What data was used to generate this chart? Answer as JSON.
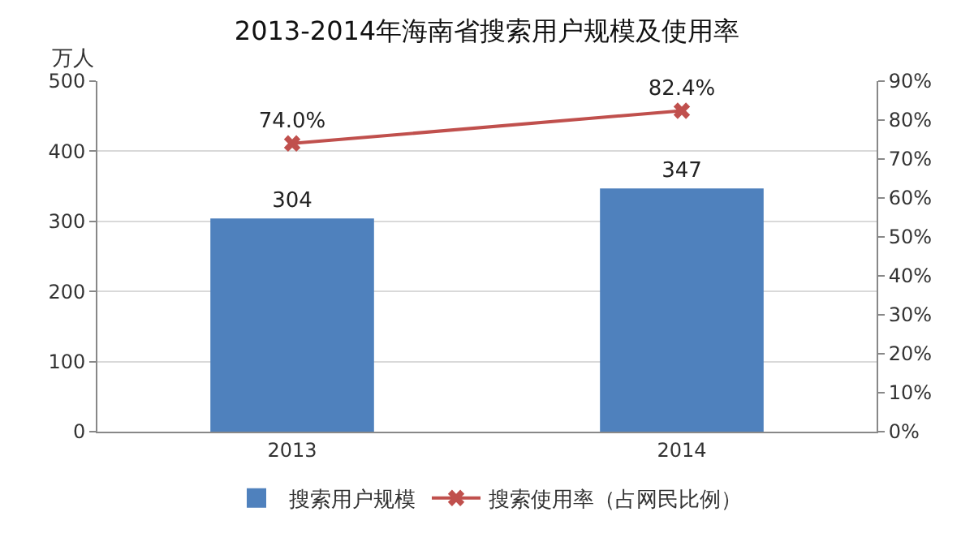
{
  "chart_data": {
    "type": "bar",
    "title": "2013-2014年海南省搜索用户规模及使用率",
    "ylabel": "万人",
    "categories": [
      "2013",
      "2014"
    ],
    "series": [
      {
        "name": "搜索用户规模",
        "color": "#4f81bd",
        "values": [
          304,
          347
        ],
        "value_labels": [
          "304",
          "347"
        ]
      },
      {
        "name": "搜索使用率（占网民比例）",
        "type": "line",
        "axis": "y2",
        "color": "#c0504d",
        "values": [
          74.0,
          82.4
        ],
        "value_labels": [
          "74.0%",
          "82.4%"
        ],
        "marker": "cross"
      }
    ],
    "ylim": [
      0,
      500
    ],
    "yticks": [
      0,
      100,
      200,
      300,
      400,
      500
    ],
    "y2lim": [
      0,
      90
    ],
    "y2ticks": [
      {
        "value": 0,
        "label": "0%"
      },
      {
        "value": 10,
        "label": "10%"
      },
      {
        "value": 20,
        "label": "20%"
      },
      {
        "value": 30,
        "label": "30%"
      },
      {
        "value": 40,
        "label": "40%"
      },
      {
        "value": 50,
        "label": "50%"
      },
      {
        "value": 60,
        "label": "60%"
      },
      {
        "value": 70,
        "label": "70%"
      },
      {
        "value": 80,
        "label": "80%"
      },
      {
        "value": 90,
        "label": "90%"
      }
    ],
    "grid": "y",
    "legend": "bottom"
  }
}
